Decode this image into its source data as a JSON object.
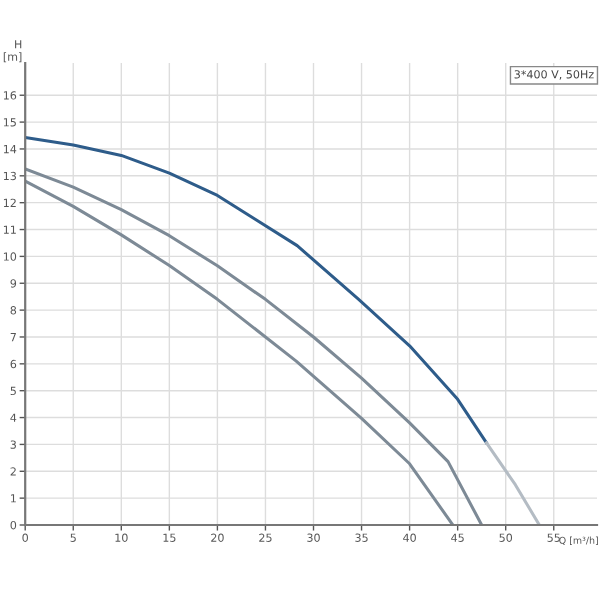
{
  "chart_data": {
    "type": "line",
    "xlabel": "Q [m³/h]",
    "ylabel": "H\n[m]",
    "annotations": [
      "3*400 V, 50Hz"
    ],
    "xlim": [
      0,
      59.5
    ],
    "ylim": [
      0,
      17.2
    ],
    "xticks": [
      0,
      5,
      10,
      15,
      20,
      25,
      30,
      35,
      40,
      45,
      50,
      55
    ],
    "yticks": [
      0,
      1,
      2,
      3,
      4,
      5,
      6,
      7,
      8,
      9,
      10,
      11,
      12,
      13,
      14,
      15,
      16
    ],
    "grid": true,
    "legend": false,
    "marker": "none",
    "line_style": "solid",
    "series": [
      {
        "color": "#2e5c8a",
        "x": [
          0,
          5,
          10,
          15,
          20,
          28.3,
          34.7,
          40,
          45,
          48
        ],
        "values": [
          14.43,
          14.15,
          13.76,
          13.1,
          12.27,
          10.4,
          8.4,
          6.67,
          4.68,
          3.06
        ]
      },
      {
        "color": "#b4bcc4",
        "x": [
          48,
          51,
          53.5
        ],
        "values": [
          3.06,
          1.5,
          0
        ]
      },
      {
        "color": "#7d8a96",
        "x": [
          0,
          5,
          10,
          15,
          20,
          25,
          30,
          35,
          40,
          44,
          47.5
        ],
        "values": [
          13.26,
          12.58,
          11.74,
          10.77,
          9.65,
          8.4,
          7.0,
          5.47,
          3.8,
          2.36,
          0
        ]
      },
      {
        "color": "#7d8a96",
        "x": [
          0,
          5,
          10,
          15,
          20,
          28.2,
          35,
          40,
          44.5
        ],
        "values": [
          12.8,
          11.86,
          10.8,
          9.66,
          8.4,
          6.1,
          3.97,
          2.28,
          0
        ]
      }
    ]
  }
}
